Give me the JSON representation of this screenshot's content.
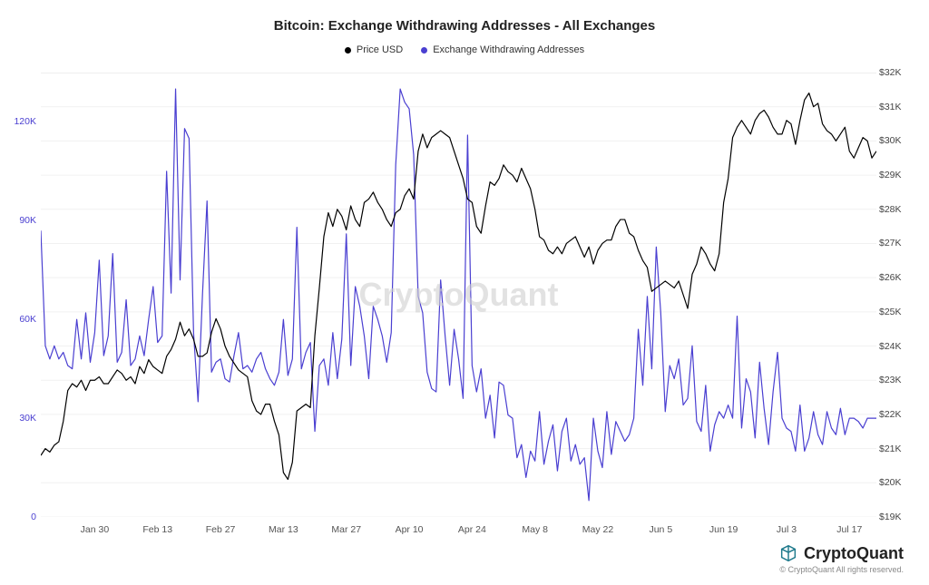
{
  "chart": {
    "type": "line-dual-axis",
    "title": "Bitcoin: Exchange Withdrawing Addresses - All Exchanges",
    "title_fontsize": 15,
    "title_color": "#222222",
    "background_color": "#ffffff",
    "grid_color": "#f1f1f1",
    "grid_top_color": "#ececec",
    "watermark_text": "CryptoQuant",
    "watermark_color": "#d0d0d0",
    "plot_line_width": 1.2,
    "legend": [
      {
        "label": "Price USD",
        "color": "#000000"
      },
      {
        "label": "Exchange Withdrawing Addresses",
        "color": "#4a3fd1"
      }
    ],
    "left_axis": {
      "label_color": "#4a3fd1",
      "min": 0,
      "max": 135000,
      "ticks": [
        0,
        30000,
        60000,
        90000,
        120000
      ],
      "tick_labels": [
        "0",
        "30K",
        "60K",
        "90K",
        "120K"
      ]
    },
    "right_axis": {
      "label_color": "#444444",
      "min": 19000,
      "max": 32000,
      "ticks": [
        19000,
        20000,
        21000,
        22000,
        23000,
        24000,
        25000,
        26000,
        27000,
        28000,
        29000,
        30000,
        31000,
        32000
      ],
      "tick_labels": [
        "$19K",
        "$20K",
        "$21K",
        "$22K",
        "$23K",
        "$24K",
        "$25K",
        "$26K",
        "$27K",
        "$28K",
        "$29K",
        "$30K",
        "$31K",
        "$32K"
      ]
    },
    "x_axis": {
      "min_index": 0,
      "max_index": 186,
      "tick_indices": [
        12,
        26,
        40,
        54,
        68,
        82,
        96,
        110,
        124,
        138,
        152,
        166,
        180
      ],
      "tick_labels": [
        "Jan 30",
        "Feb 13",
        "Feb 27",
        "Mar 13",
        "Mar 27",
        "Apr 10",
        "Apr 24",
        "May 8",
        "May 22",
        "Jun 5",
        "Jun 19",
        "Jul 3",
        "Jul 17"
      ]
    },
    "series_addresses": {
      "name": "Exchange Withdrawing Addresses",
      "color": "#4a3fd1",
      "values": [
        87000,
        52000,
        48000,
        52000,
        48000,
        50000,
        46000,
        45000,
        60000,
        48000,
        62000,
        47000,
        56000,
        78000,
        49000,
        55000,
        80000,
        47000,
        50000,
        66000,
        46000,
        48000,
        55000,
        49000,
        60000,
        70000,
        53000,
        55000,
        105000,
        68000,
        130000,
        72000,
        118000,
        115000,
        56000,
        35000,
        68000,
        96000,
        44000,
        47000,
        48000,
        42000,
        41000,
        49000,
        56000,
        45000,
        46000,
        44000,
        48000,
        50000,
        45000,
        42000,
        40000,
        44000,
        60000,
        43000,
        48000,
        88000,
        45000,
        50000,
        53000,
        26000,
        46000,
        48000,
        40000,
        56000,
        42000,
        54000,
        86000,
        46000,
        70000,
        64000,
        55000,
        42000,
        64000,
        60000,
        55000,
        47000,
        56000,
        107000,
        130000,
        126000,
        124000,
        110000,
        67000,
        62000,
        44000,
        39000,
        38000,
        72000,
        55000,
        40000,
        57000,
        48000,
        36000,
        116000,
        46000,
        38000,
        45000,
        30000,
        37000,
        24000,
        41000,
        40000,
        31000,
        30000,
        18000,
        22000,
        12000,
        20000,
        17000,
        32000,
        16000,
        23000,
        28000,
        14000,
        26000,
        30000,
        17000,
        22000,
        16000,
        18000,
        5000,
        30000,
        20000,
        15000,
        32000,
        19000,
        29000,
        26000,
        23000,
        25000,
        30000,
        57000,
        40000,
        67000,
        45000,
        82000,
        62000,
        32000,
        46000,
        42000,
        48000,
        34000,
        36000,
        52000,
        29000,
        26000,
        40000,
        20000,
        28000,
        32000,
        30000,
        34000,
        30000,
        61000,
        27000,
        42000,
        38000,
        24000,
        47000,
        33000,
        22000,
        38000,
        50000,
        30000,
        27000,
        26000,
        20000,
        34000,
        20000,
        24000,
        32000,
        25000,
        22000,
        32000,
        27000,
        25000,
        33000,
        25000,
        30000,
        30000,
        29000,
        27000,
        30000,
        30000,
        30000
      ]
    },
    "series_price": {
      "name": "Price USD",
      "color": "#000000",
      "values": [
        20800,
        21000,
        20900,
        21100,
        21200,
        21800,
        22700,
        22900,
        22800,
        23000,
        22700,
        23000,
        23000,
        23100,
        22900,
        22900,
        23100,
        23300,
        23200,
        23000,
        23100,
        22900,
        23400,
        23200,
        23600,
        23400,
        23300,
        23200,
        23700,
        23900,
        24200,
        24700,
        24300,
        24500,
        24200,
        23700,
        23700,
        23800,
        24400,
        24800,
        24500,
        24000,
        23700,
        23500,
        23300,
        23200,
        23100,
        22400,
        22100,
        22000,
        22300,
        22300,
        21800,
        21400,
        20300,
        20100,
        20600,
        22100,
        22200,
        22300,
        22200,
        24300,
        25700,
        27200,
        27900,
        27500,
        28000,
        27800,
        27400,
        28100,
        27700,
        27500,
        28200,
        28300,
        28500,
        28200,
        28000,
        27700,
        27500,
        27900,
        28000,
        28400,
        28600,
        28300,
        29700,
        30200,
        29800,
        30100,
        30200,
        30300,
        30200,
        30100,
        29700,
        29300,
        28900,
        28300,
        28200,
        27500,
        27300,
        28100,
        28800,
        28700,
        28900,
        29300,
        29100,
        29000,
        28800,
        29200,
        28900,
        28600,
        28000,
        27200,
        27100,
        26800,
        26700,
        26900,
        26700,
        27000,
        27100,
        27200,
        26900,
        26600,
        26900,
        26400,
        26800,
        27000,
        27100,
        27100,
        27500,
        27700,
        27700,
        27300,
        27200,
        26800,
        26500,
        26300,
        25600,
        25700,
        25800,
        25900,
        25800,
        25700,
        25900,
        25500,
        25100,
        26100,
        26400,
        26900,
        26700,
        26400,
        26200,
        26700,
        28200,
        28900,
        30100,
        30400,
        30600,
        30400,
        30200,
        30600,
        30800,
        30900,
        30700,
        30400,
        30200,
        30200,
        30600,
        30500,
        29900,
        30600,
        31200,
        31400,
        31000,
        31100,
        30500,
        30300,
        30200,
        30000,
        30200,
        30400,
        29700,
        29500,
        29800,
        30100,
        30000,
        29500,
        29700
      ]
    }
  },
  "branding": {
    "name": "CryptoQuant",
    "icon_color": "#1f7a8c",
    "copyright": "© CryptoQuant All rights reserved."
  }
}
